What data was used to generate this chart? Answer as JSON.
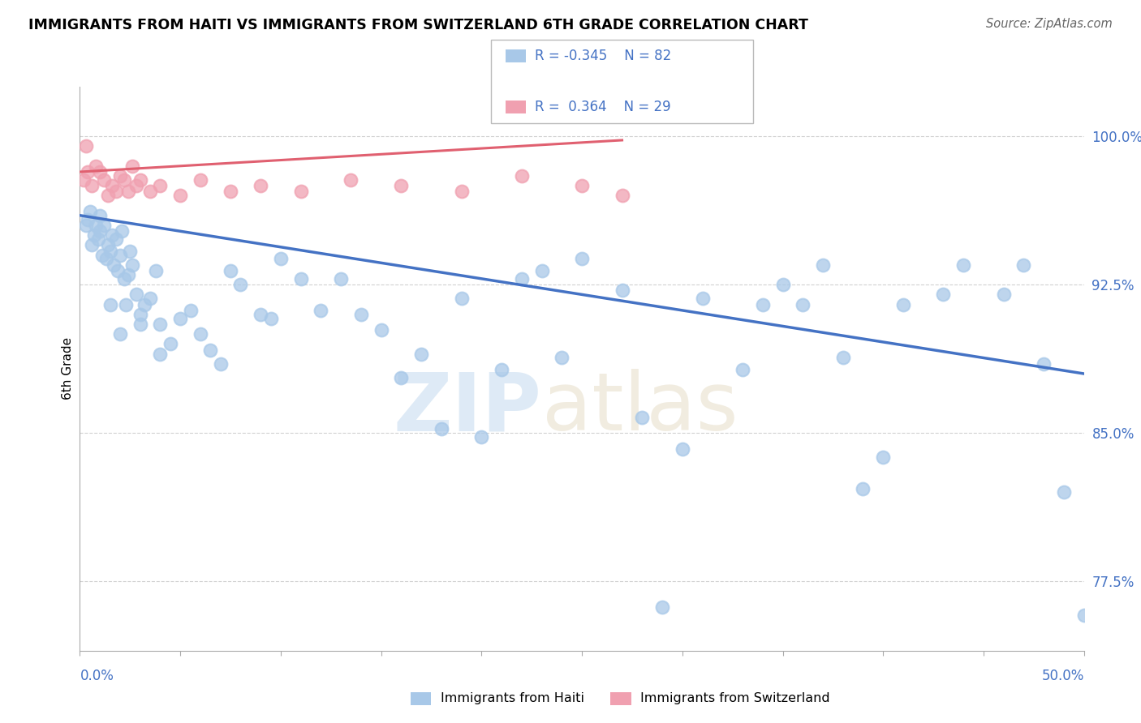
{
  "title": "IMMIGRANTS FROM HAITI VS IMMIGRANTS FROM SWITZERLAND 6TH GRADE CORRELATION CHART",
  "source": "Source: ZipAtlas.com",
  "ylabel": "6th Grade",
  "xlim": [
    0.0,
    50.0
  ],
  "ylim": [
    74.0,
    102.5
  ],
  "yticks": [
    77.5,
    85.0,
    92.5,
    100.0
  ],
  "ytick_labels": [
    "77.5%",
    "85.0%",
    "92.5%",
    "100.0%"
  ],
  "haiti_R": -0.345,
  "haiti_N": 82,
  "swiss_R": 0.364,
  "swiss_N": 29,
  "haiti_color": "#a8c8e8",
  "swiss_color": "#f0a0b0",
  "haiti_line_color": "#4472c4",
  "swiss_line_color": "#e06070",
  "haiti_line_x0": 0.0,
  "haiti_line_y0": 96.0,
  "haiti_line_x1": 50.0,
  "haiti_line_y1": 88.0,
  "swiss_line_x0": 0.0,
  "swiss_line_y0": 98.2,
  "swiss_line_x1": 27.0,
  "swiss_line_y1": 99.8,
  "haiti_x": [
    0.3,
    0.4,
    0.5,
    0.6,
    0.7,
    0.8,
    0.9,
    1.0,
    1.0,
    1.1,
    1.2,
    1.3,
    1.4,
    1.5,
    1.6,
    1.7,
    1.8,
    1.9,
    2.0,
    2.1,
    2.2,
    2.3,
    2.4,
    2.5,
    2.6,
    2.8,
    3.0,
    3.2,
    3.5,
    3.8,
    4.0,
    4.5,
    5.0,
    5.5,
    6.0,
    6.5,
    7.0,
    7.5,
    8.0,
    9.0,
    9.5,
    10.0,
    11.0,
    12.0,
    13.0,
    14.0,
    15.0,
    16.0,
    17.0,
    18.0,
    19.0,
    20.0,
    21.0,
    22.0,
    23.0,
    24.0,
    25.0,
    27.0,
    28.0,
    29.0,
    30.0,
    31.0,
    33.0,
    34.0,
    35.0,
    36.0,
    37.0,
    38.0,
    39.0,
    40.0,
    41.0,
    43.0,
    44.0,
    46.0,
    47.0,
    48.0,
    49.0,
    50.0,
    3.0,
    1.5,
    2.0,
    4.0
  ],
  "haiti_y": [
    95.5,
    95.8,
    96.2,
    94.5,
    95.0,
    95.5,
    94.8,
    95.2,
    96.0,
    94.0,
    95.5,
    93.8,
    94.5,
    94.2,
    95.0,
    93.5,
    94.8,
    93.2,
    94.0,
    95.2,
    92.8,
    91.5,
    93.0,
    94.2,
    93.5,
    92.0,
    91.0,
    91.5,
    91.8,
    93.2,
    90.5,
    89.5,
    90.8,
    91.2,
    90.0,
    89.2,
    88.5,
    93.2,
    92.5,
    91.0,
    90.8,
    93.8,
    92.8,
    91.2,
    92.8,
    91.0,
    90.2,
    87.8,
    89.0,
    85.2,
    91.8,
    84.8,
    88.2,
    92.8,
    93.2,
    88.8,
    93.8,
    92.2,
    85.8,
    76.2,
    84.2,
    91.8,
    88.2,
    91.5,
    92.5,
    91.5,
    93.5,
    88.8,
    82.2,
    83.8,
    91.5,
    92.0,
    93.5,
    92.0,
    93.5,
    88.5,
    82.0,
    75.8,
    90.5,
    91.5,
    90.0,
    89.0
  ],
  "swiss_x": [
    0.2,
    0.4,
    0.6,
    0.8,
    1.0,
    1.2,
    1.4,
    1.6,
    1.8,
    2.0,
    2.2,
    2.4,
    2.6,
    2.8,
    3.0,
    3.5,
    4.0,
    5.0,
    6.0,
    7.5,
    9.0,
    11.0,
    13.5,
    16.0,
    19.0,
    22.0,
    25.0,
    27.0,
    0.3
  ],
  "swiss_y": [
    97.8,
    98.2,
    97.5,
    98.5,
    98.2,
    97.8,
    97.0,
    97.5,
    97.2,
    98.0,
    97.8,
    97.2,
    98.5,
    97.5,
    97.8,
    97.2,
    97.5,
    97.0,
    97.8,
    97.2,
    97.5,
    97.2,
    97.8,
    97.5,
    97.2,
    98.0,
    97.5,
    97.0,
    99.5
  ]
}
